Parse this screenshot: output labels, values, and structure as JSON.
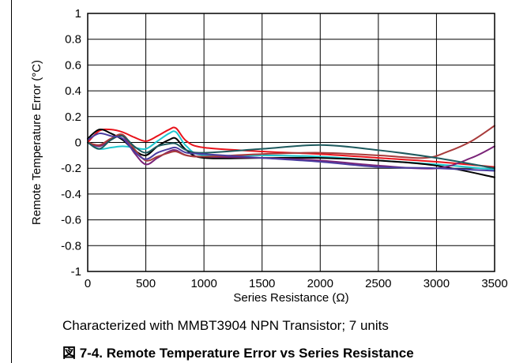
{
  "chart_data": {
    "type": "line",
    "title": "",
    "xlabel": "Series Resistance (Ω)",
    "ylabel": "Remote Temperature Error (°C)",
    "xlim": [
      0,
      3500
    ],
    "ylim": [
      -1,
      1
    ],
    "xticks": [
      0,
      500,
      1000,
      1500,
      2000,
      2500,
      3000,
      3500
    ],
    "yticks": [
      1,
      0.8,
      0.6,
      0.4,
      0.2,
      0,
      -0.2,
      -0.4,
      -0.6,
      -0.8,
      -1
    ],
    "xtick_labels": [
      "0",
      "500",
      "1000",
      "1500",
      "2000",
      "2500",
      "3000",
      "3500"
    ],
    "ytick_labels": [
      "1",
      "0.8",
      "0.6",
      "0.4",
      "0.2",
      "0",
      "-0.2",
      "-0.4",
      "-0.6",
      "-0.8",
      "-1"
    ],
    "grid": true,
    "legend": "none",
    "series": [
      {
        "color": "#e8131b",
        "points": [
          [
            0,
            0
          ],
          [
            100,
            0.09
          ],
          [
            200,
            0.1
          ],
          [
            300,
            0.08
          ],
          [
            400,
            0.04
          ],
          [
            500,
            0.01
          ],
          [
            600,
            0.05
          ],
          [
            700,
            0.1
          ],
          [
            760,
            0.11
          ],
          [
            850,
            0.01
          ],
          [
            1000,
            -0.04
          ],
          [
            1500,
            -0.07
          ],
          [
            2000,
            -0.09
          ],
          [
            2500,
            -0.12
          ],
          [
            3000,
            -0.15
          ],
          [
            3500,
            -0.19
          ]
        ]
      },
      {
        "color": "#1fc7cf",
        "points": [
          [
            0,
            0
          ],
          [
            100,
            -0.05
          ],
          [
            200,
            -0.04
          ],
          [
            300,
            -0.03
          ],
          [
            400,
            -0.04
          ],
          [
            500,
            -0.05
          ],
          [
            600,
            0.01
          ],
          [
            700,
            0.07
          ],
          [
            760,
            0.08
          ],
          [
            850,
            -0.03
          ],
          [
            1000,
            -0.1
          ],
          [
            1500,
            -0.1
          ],
          [
            2000,
            -0.11
          ],
          [
            2500,
            -0.14
          ],
          [
            3000,
            -0.17
          ],
          [
            3500,
            -0.21
          ]
        ]
      },
      {
        "color": "#000000",
        "points": [
          [
            0,
            0.03
          ],
          [
            100,
            0.1
          ],
          [
            200,
            0.07
          ],
          [
            300,
            0.02
          ],
          [
            400,
            -0.06
          ],
          [
            500,
            -0.1
          ],
          [
            600,
            -0.03
          ],
          [
            700,
            0.02
          ],
          [
            760,
            0.03
          ],
          [
            850,
            -0.06
          ],
          [
            1000,
            -0.12
          ],
          [
            1500,
            -0.12
          ],
          [
            2000,
            -0.12
          ],
          [
            2500,
            -0.14
          ],
          [
            3000,
            -0.18
          ],
          [
            3500,
            -0.27
          ]
        ]
      },
      {
        "color": "#7a2478",
        "points": [
          [
            0,
            0
          ],
          [
            100,
            -0.03
          ],
          [
            200,
            0.02
          ],
          [
            300,
            0.05
          ],
          [
            400,
            -0.08
          ],
          [
            500,
            -0.17
          ],
          [
            600,
            -0.12
          ],
          [
            700,
            -0.07
          ],
          [
            760,
            -0.06
          ],
          [
            850,
            -0.1
          ],
          [
            1000,
            -0.11
          ],
          [
            1500,
            -0.12
          ],
          [
            2000,
            -0.14
          ],
          [
            2500,
            -0.18
          ],
          [
            3000,
            -0.2
          ],
          [
            3300,
            -0.12
          ],
          [
            3500,
            -0.03
          ]
        ]
      },
      {
        "color": "#a83b3b",
        "points": [
          [
            0,
            0
          ],
          [
            100,
            -0.02
          ],
          [
            200,
            0.03
          ],
          [
            300,
            0.06
          ],
          [
            400,
            -0.05
          ],
          [
            500,
            -0.14
          ],
          [
            600,
            -0.11
          ],
          [
            700,
            -0.08
          ],
          [
            760,
            -0.07
          ],
          [
            850,
            -0.1
          ],
          [
            1000,
            -0.11
          ],
          [
            1500,
            -0.09
          ],
          [
            2000,
            -0.08
          ],
          [
            2500,
            -0.1
          ],
          [
            2900,
            -0.12
          ],
          [
            3100,
            -0.07
          ],
          [
            3300,
            0.01
          ],
          [
            3500,
            0.13
          ]
        ]
      },
      {
        "color": "#1e5a5e",
        "points": [
          [
            0,
            0
          ],
          [
            100,
            -0.05
          ],
          [
            200,
            0.02
          ],
          [
            300,
            0.05
          ],
          [
            400,
            -0.03
          ],
          [
            500,
            -0.08
          ],
          [
            600,
            -0.03
          ],
          [
            700,
            -0.01
          ],
          [
            760,
            -0.01
          ],
          [
            850,
            -0.06
          ],
          [
            1000,
            -0.08
          ],
          [
            1500,
            -0.05
          ],
          [
            2000,
            -0.02
          ],
          [
            2500,
            -0.06
          ],
          [
            3000,
            -0.12
          ],
          [
            3500,
            -0.2
          ]
        ]
      },
      {
        "color": "#4a3ca0",
        "points": [
          [
            0,
            0.02
          ],
          [
            100,
            0.07
          ],
          [
            200,
            0.05
          ],
          [
            300,
            0.03
          ],
          [
            400,
            -0.07
          ],
          [
            500,
            -0.13
          ],
          [
            600,
            -0.08
          ],
          [
            700,
            -0.05
          ],
          [
            760,
            -0.04
          ],
          [
            850,
            -0.08
          ],
          [
            1000,
            -0.09
          ],
          [
            1500,
            -0.12
          ],
          [
            2000,
            -0.15
          ],
          [
            2500,
            -0.19
          ],
          [
            3000,
            -0.2
          ],
          [
            3500,
            -0.22
          ]
        ]
      }
    ]
  },
  "caption": "Characterized with MMBT3904 NPN Transistor; 7 units",
  "figure_title": "図 7-4. Remote Temperature Error vs Series Resistance"
}
